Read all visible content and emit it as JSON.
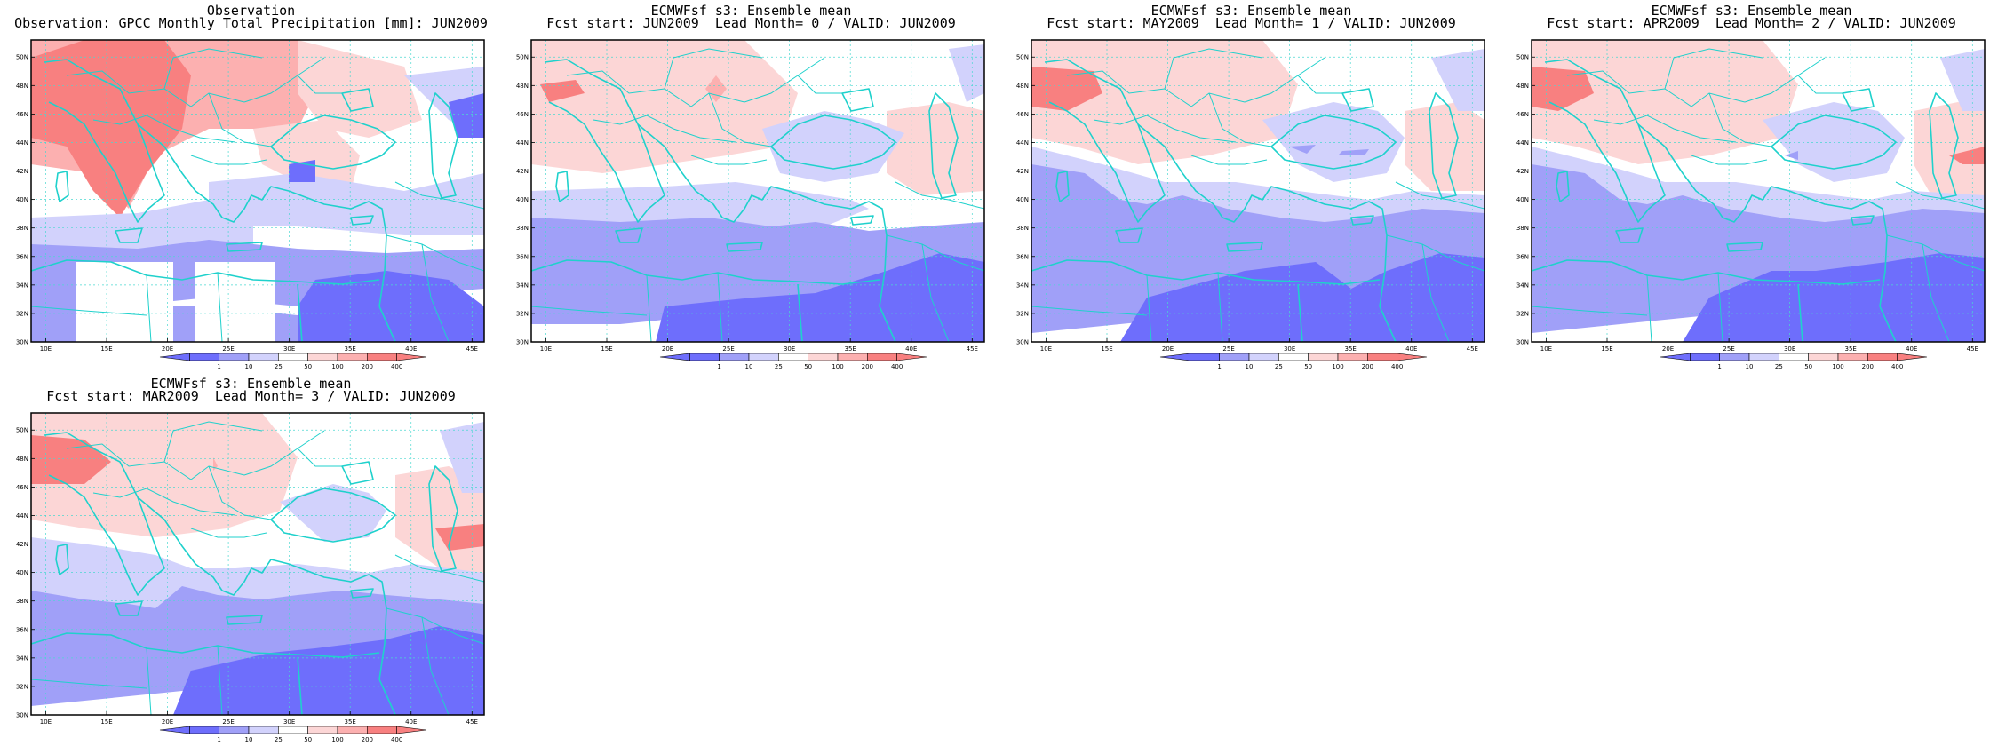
{
  "figure": {
    "panels": [
      {
        "line1": "Observation",
        "line2": "Observation: GPCC Monthly Total Precipitation [mm]: JUN2009"
      },
      {
        "line1": "ECMWFsf s3: Ensemble mean",
        "line2": "Fcst start: JUN2009  Lead Month= 0 / VALID: JUN2009"
      },
      {
        "line1": "ECMWFsf s3: Ensemble mean",
        "line2": "Fcst start: MAY2009  Lead Month= 1 / VALID: JUN2009"
      },
      {
        "line1": "ECMWFsf s3: Ensemble mean",
        "line2": "Fcst start: APR2009  Lead Month= 2 / VALID: JUN2009"
      },
      {
        "line1": "ECMWFsf s3: Ensemble mean",
        "line2": "Fcst start: MAR2009  Lead Month= 3 / VALID: JUN2009"
      }
    ],
    "lat_labels": [
      "30N",
      "32N",
      "34N",
      "36N",
      "38N",
      "40N",
      "42N",
      "44N",
      "46N",
      "48N",
      "50N"
    ],
    "lon_labels": [
      "10E",
      "15E",
      "20E",
      "25E",
      "30E",
      "35E",
      "40E",
      "45E"
    ],
    "colorbar_labels": [
      "1",
      "10",
      "25",
      "50",
      "100",
      "200",
      "400"
    ],
    "colors": {
      "levels": [
        "#6e6efc",
        "#a0a0f8",
        "#d2d2fc",
        "#ffffff",
        "#fcd6d6",
        "#fcb0b0",
        "#f88080"
      ],
      "coast": "#1fd1cc",
      "grid": "#4ad8d0"
    }
  }
}
